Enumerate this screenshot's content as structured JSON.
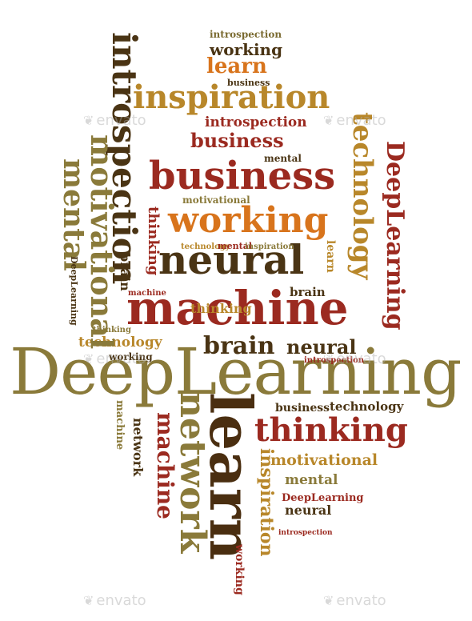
{
  "palette": {
    "dark_brown": "#4a2e10",
    "red": "#9b2a20",
    "olive": "#8a7a3a",
    "gold": "#b8872a",
    "orange": "#d8741c",
    "dark": "#2c2417"
  },
  "watermark": {
    "text": "envato",
    "icon": "leaf-icon"
  },
  "words": {
    "deeplearning_main": "DeepLearning",
    "machine_main": "machine",
    "neural_main": "neural",
    "working_main": "working",
    "business_main": "business",
    "inspiration_main": "inspiration",
    "introspection_top": "introspection",
    "learn_top": "learn",
    "working_top": "working",
    "business_top": "business",
    "introspection_mid": "introspection",
    "business_mid": "business",
    "mental_mid": "mental",
    "brain_mid": "brain",
    "thinking_lower": "thinking",
    "brain_lower": "brain",
    "neural_lower": "neural",
    "technology_lower": "technology",
    "working_lower": "working",
    "introspection_lower": "introspection",
    "business_bottom": "business",
    "technology_bottom": "technology",
    "motivational_bottom": "motivational",
    "mental_bottom": "mental",
    "deeplearning_bottom": "DeepLearning",
    "neural_bottom": "neural",
    "introspection_bottom": "introspection",
    "motivational_small": "motivational",
    "technology_small": "technology",
    "inspiration_small": "inspiration",
    "mental_small": "mental",
    "machine_small": "machine",
    "learn_small": "learn",
    "thinking_small": "thinking",
    "introspection_v_left": "introspection",
    "motivational_v_left": "motivational",
    "mental_v_left": "mental",
    "thinking_v_left": "thinking",
    "brain_v_left": "brain",
    "technology_v_right": "technology",
    "deeplearning_v_right": "DeepLearning",
    "learn_v_right": "learn",
    "learn_v_bottom": "learn",
    "network_v_bottom": "network",
    "machine_v_bottom": "machine",
    "inspiration_v_bottom": "inspiration",
    "working_v_bottom": "working",
    "network_v_small": "network",
    "machine_v_small": "machine",
    "deeplearning_v_small": "DeepLearning"
  }
}
